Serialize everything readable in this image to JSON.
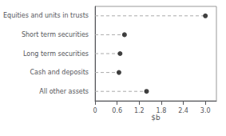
{
  "chart_data": {
    "type": "lollipop",
    "categories": [
      "Equities and units in trusts",
      "Short term securities",
      "Long term securities",
      "Cash and deposits",
      "All other assets"
    ],
    "values": [
      3.0,
      0.8,
      0.68,
      0.65,
      1.4
    ],
    "xlabel": "$b",
    "xlim": [
      0,
      3.3
    ],
    "xticks": [
      0,
      0.6,
      1.2,
      1.8,
      2.4,
      {
        "value": 3.0,
        "label": "3.0"
      }
    ],
    "color": "#111111",
    "marker": "circle",
    "line_style": "dashed",
    "grid": false
  }
}
